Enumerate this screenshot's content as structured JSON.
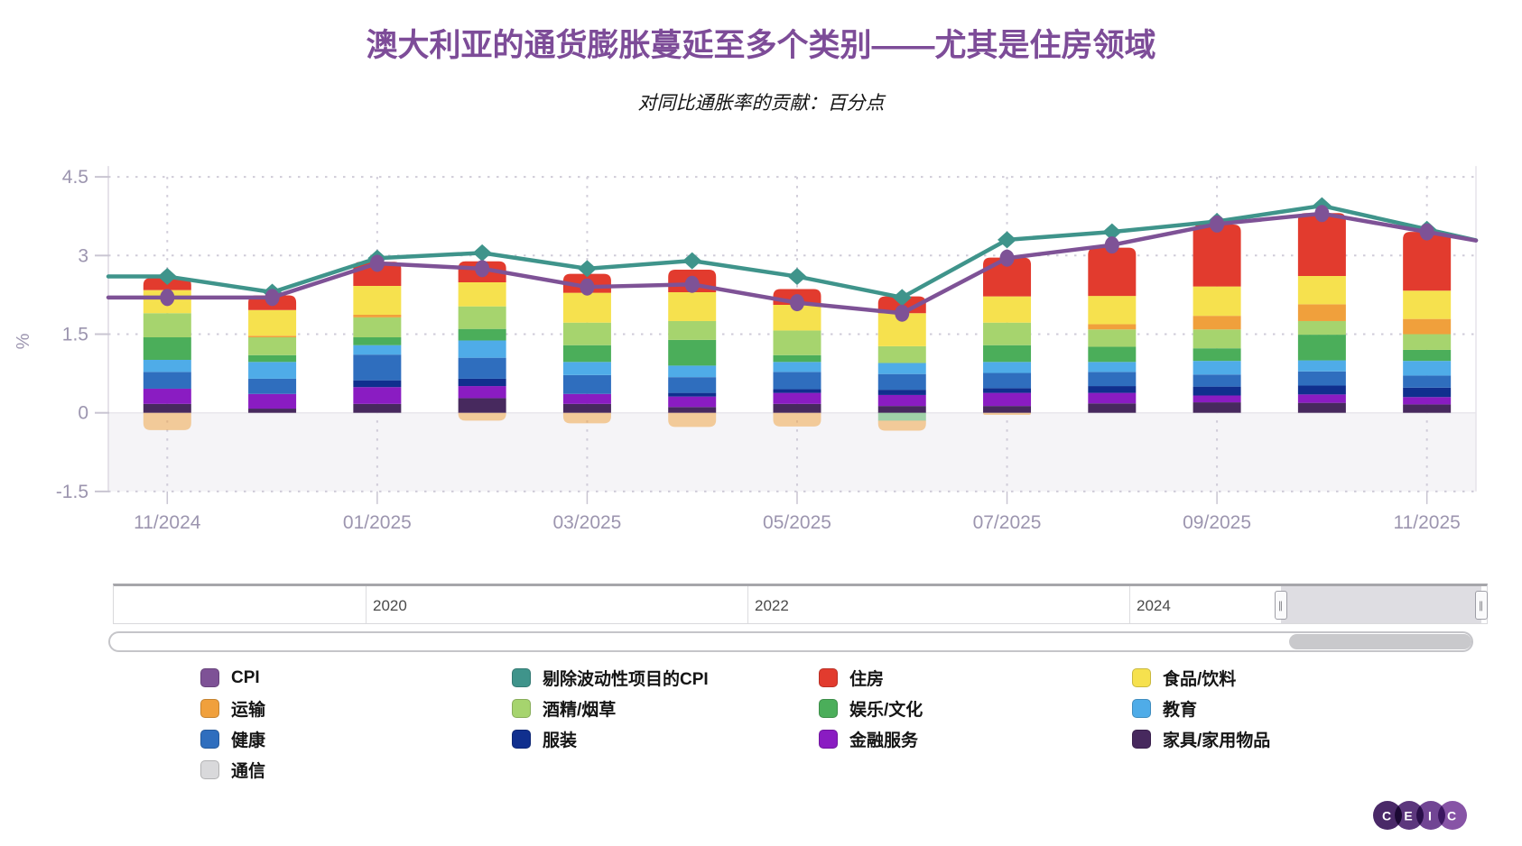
{
  "header": {
    "title": "澳大利亚的通货膨胀蔓延至多个类别——尤其是住房领域",
    "subtitle": "对同比通胀率的贡献：百分点"
  },
  "chart_data": {
    "type": "bar",
    "subtype": "stacked-bars-with-lines",
    "title": "对同比通胀率的贡献：百分点",
    "xlabel": "",
    "ylabel": "%",
    "ylim": [
      -1.5,
      4.5
    ],
    "yticks": [
      "4.5",
      "3",
      "1.5",
      "0",
      "-1.5"
    ],
    "ytick_values": [
      4.5,
      3,
      1.5,
      0,
      -1.5
    ],
    "grid": "dotted",
    "categories": [
      "11/2024",
      "12/2024",
      "01/2025",
      "02/2025",
      "03/2025",
      "04/2025",
      "05/2025",
      "06/2025",
      "07/2025",
      "08/2025",
      "09/2025",
      "10/2025",
      "11/2025"
    ],
    "x_tick_label_indexes": [
      0,
      2,
      4,
      6,
      8,
      10,
      12
    ],
    "x_tick_labels": [
      "11/2024",
      "01/2025",
      "03/2025",
      "05/2025",
      "07/2025",
      "09/2025",
      "11/2025"
    ],
    "series": [
      {
        "name": "家具/家用物品",
        "color": "#47295E",
        "values": [
          0.17,
          0.08,
          0.17,
          0.28,
          0.17,
          0.11,
          0.17,
          0.13,
          0.13,
          0.18,
          0.2,
          0.19,
          0.16
        ]
      },
      {
        "name": "金融服务",
        "color": "#8A1CC2",
        "values": [
          0.29,
          0.28,
          0.32,
          0.23,
          0.19,
          0.2,
          0.21,
          0.21,
          0.25,
          0.2,
          0.13,
          0.16,
          0.14
        ]
      },
      {
        "name": "服装",
        "color": "#102F8E",
        "values": [
          0,
          0,
          0.13,
          0.14,
          0,
          0.07,
          0.07,
          0.1,
          0.09,
          0.13,
          0.17,
          0.17,
          0.18
        ]
      },
      {
        "name": "健康",
        "color": "#2F6EBE",
        "values": [
          0.32,
          0.29,
          0.49,
          0.4,
          0.36,
          0.3,
          0.33,
          0.3,
          0.29,
          0.27,
          0.23,
          0.27,
          0.23
        ]
      },
      {
        "name": "教育",
        "color": "#4FACE8",
        "values": [
          0.23,
          0.32,
          0.18,
          0.33,
          0.25,
          0.22,
          0.19,
          0.21,
          0.21,
          0.19,
          0.26,
          0.21,
          0.28
        ]
      },
      {
        "name": "娱乐/文化",
        "color": "#4BAE5A",
        "values": [
          0.43,
          0.13,
          0.15,
          0.22,
          0.32,
          0.49,
          0.13,
          -0.15,
          0.32,
          0.29,
          0.24,
          0.49,
          0.21
        ]
      },
      {
        "name": "酒精/烟草",
        "color": "#A6D46E",
        "values": [
          0.46,
          0.34,
          0.38,
          0.43,
          0.43,
          0.36,
          0.47,
          0.32,
          0.43,
          0.33,
          0.36,
          0.26,
          0.3
        ]
      },
      {
        "name": "运输",
        "color": "#F0A03C",
        "values": [
          -0.33,
          0.03,
          0.05,
          -0.15,
          -0.2,
          -0.27,
          -0.26,
          -0.19,
          -0.04,
          0.1,
          0.26,
          0.32,
          0.29
        ]
      },
      {
        "name": "食品/饮料",
        "color": "#F6E14E",
        "values": [
          0.44,
          0.49,
          0.55,
          0.46,
          0.57,
          0.55,
          0.49,
          0.63,
          0.5,
          0.54,
          0.56,
          0.54,
          0.54
        ]
      },
      {
        "name": "住房",
        "color": "#E23B2E",
        "values": [
          0.23,
          0.28,
          0.46,
          0.4,
          0.36,
          0.43,
          0.3,
          0.32,
          0.74,
          0.92,
          1.18,
          1.2,
          1.12
        ]
      },
      {
        "name": "通信",
        "color": "#D9D9DB",
        "values": [
          0,
          0,
          0,
          0,
          0,
          0,
          0,
          0,
          0,
          0,
          0,
          0,
          0
        ]
      }
    ],
    "line_series": [
      {
        "name": "剔除波动性项目的CPI",
        "color": "#3F948B",
        "marker": "diamond",
        "values": [
          2.6,
          2.3,
          2.95,
          3.05,
          2.75,
          2.9,
          2.6,
          2.2,
          3.3,
          3.45,
          3.65,
          3.95,
          3.5
        ]
      },
      {
        "name": "CPI",
        "color": "#7E5296",
        "marker": "circle",
        "values": [
          2.2,
          2.2,
          2.85,
          2.75,
          2.4,
          2.45,
          2.1,
          1.9,
          2.95,
          3.2,
          3.6,
          3.8,
          3.45
        ]
      }
    ],
    "legend_position": "bottom"
  },
  "legend": {
    "columns": [
      [
        {
          "label": "CPI",
          "color": "#7E5296"
        },
        {
          "label": "运输",
          "color": "#F0A03C"
        },
        {
          "label": "健康",
          "color": "#2F6EBE"
        },
        {
          "label": "通信",
          "color": "#D9D9DB"
        }
      ],
      [
        {
          "label": "剔除波动性项目的CPI",
          "color": "#3F948B"
        },
        {
          "label": "酒精/烟草",
          "color": "#A6D46E"
        },
        {
          "label": "服装",
          "color": "#102F8E"
        }
      ],
      [
        {
          "label": "住房",
          "color": "#E23B2E"
        },
        {
          "label": "娱乐/文化",
          "color": "#4BAE5A"
        },
        {
          "label": "金融服务",
          "color": "#8A1CC2"
        }
      ],
      [
        {
          "label": "食品/饮料",
          "color": "#F6E14E"
        },
        {
          "label": "教育",
          "color": "#4FACE8"
        },
        {
          "label": "家具/家用物品",
          "color": "#47295E"
        }
      ]
    ]
  },
  "navigator": {
    "years": [
      "2020",
      "2022",
      "2024"
    ]
  },
  "logo": {
    "letters": [
      "C",
      "E",
      "I",
      "C"
    ],
    "circle_colors": [
      "#4A2968",
      "#5C377D",
      "#714594",
      "#8754A6"
    ]
  }
}
